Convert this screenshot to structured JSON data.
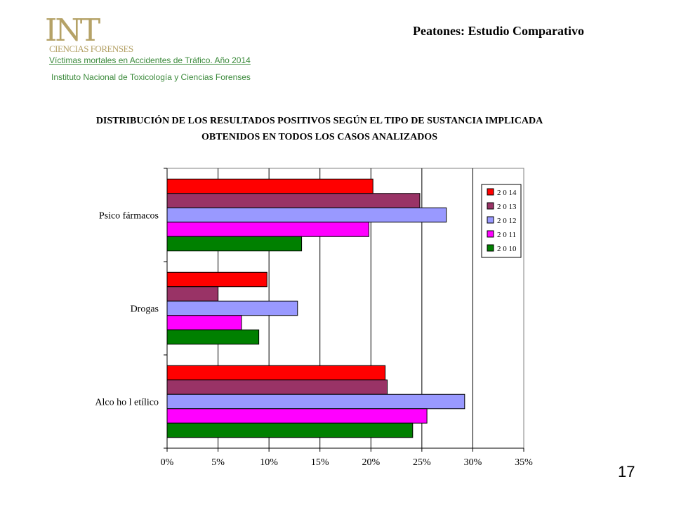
{
  "logo": {
    "big": "INT",
    "small": "CIENCIAS FORENSES"
  },
  "header": {
    "title": "Peatones: Estudio Comparativo",
    "link_text": "Víctimas mortales en Accidentes de Tráfico. Año 2014",
    "institute": "Instituto Nacional de Toxicología y Ciencias Forenses"
  },
  "page_number": "17",
  "chart_data": {
    "type": "bar",
    "orientation": "horizontal",
    "title_line1": "DISTRIBUCIÓN DE LOS RESULTADOS POSITIVOS  SEGÚN EL TIPO DE SUSTANCIA IMPLICADA",
    "title_line2": "OBTENIDOS EN TODOS LOS CASOS ANALIZADOS",
    "categories": [
      "Psicofármacos",
      "Drogas",
      "Alcohol etílico"
    ],
    "category_labels": [
      "Psico fármacos",
      "Drogas",
      "Alco ho l etílico"
    ],
    "xlim": [
      0,
      35
    ],
    "xticks": [
      "0%",
      "5%",
      "10%",
      "15%",
      "20%",
      "25%",
      "30%",
      "35%"
    ],
    "grid": "vertical",
    "legend_position": "top-right",
    "series": [
      {
        "name": "2014",
        "color": "#ff0000",
        "values": [
          20.2,
          9.8,
          21.4
        ]
      },
      {
        "name": "2013",
        "color": "#993366",
        "values": [
          24.8,
          5.0,
          21.6
        ]
      },
      {
        "name": "2012",
        "color": "#9999ff",
        "values": [
          27.4,
          12.8,
          29.2
        ]
      },
      {
        "name": "2011",
        "color": "#ff00ff",
        "values": [
          19.8,
          7.3,
          25.5
        ]
      },
      {
        "name": "2010",
        "color": "#008000",
        "values": [
          13.2,
          9.0,
          24.1
        ]
      }
    ],
    "legend_labels": [
      "2 0 14",
      "2 0 13",
      "2 0 12",
      "2 0 11",
      "2 0 10"
    ]
  }
}
